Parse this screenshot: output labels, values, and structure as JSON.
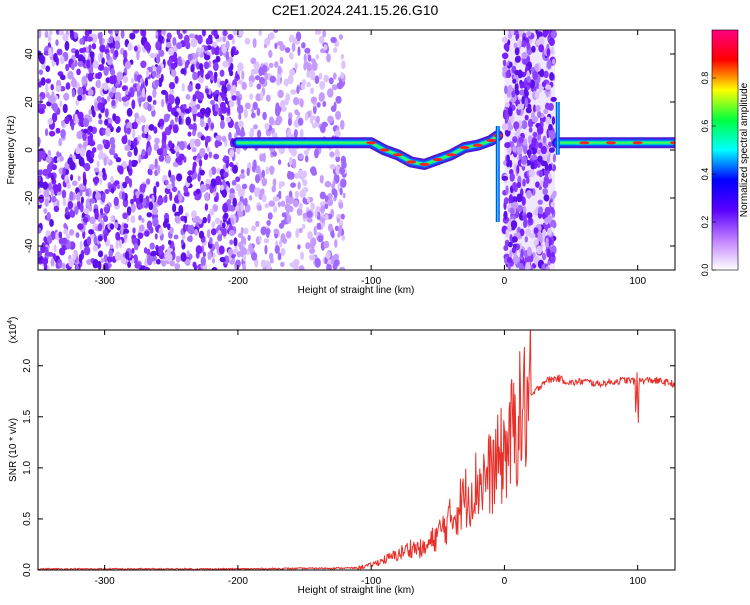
{
  "title": "C2E1.2024.241.15.26.G10",
  "chart_data": [
    {
      "type": "heatmap",
      "xlabel": "Height of straight line (km)",
      "ylabel": "Frequency (Hz)",
      "xlim": [
        -350,
        128
      ],
      "ylim": [
        -50,
        50
      ],
      "xticks": [
        -300,
        -200,
        -100,
        0,
        100
      ],
      "yticks": [
        -40,
        -20,
        0,
        20,
        40
      ],
      "colorbar": {
        "label": "Normalized spectral amplitude",
        "range": [
          0,
          1
        ],
        "ticks": [
          "0.0",
          "0.2",
          "0.4",
          "0.6",
          "0.8"
        ],
        "colors": [
          "#ffffff",
          "#c080ff",
          "#5a00ff",
          "#0000ff",
          "#00ffff",
          "#00ff40",
          "#ffff00",
          "#ff0000",
          "#ff0080"
        ]
      },
      "ridge": {
        "x": [
          -200,
          -180,
          -160,
          -140,
          -120,
          -100,
          -90,
          -80,
          -70,
          -60,
          -50,
          -40,
          -30,
          -20,
          -10,
          -5,
          40,
          60,
          80,
          100,
          128
        ],
        "freq": [
          3,
          3,
          3,
          3,
          3,
          3,
          0,
          -2,
          -5,
          -6,
          -4,
          -2,
          1,
          2,
          4,
          6,
          3,
          3,
          3,
          3,
          3
        ]
      },
      "noise_regions": [
        [
          -350,
          -200
        ],
        [
          -200,
          -120
        ],
        [
          0,
          38
        ]
      ],
      "spikes": [
        [
          -5,
          -30,
          10
        ],
        [
          40,
          -2,
          20
        ]
      ]
    },
    {
      "type": "line",
      "xlabel": "Height of straight line (km)",
      "ylabel": "SNR (10 * v/v)",
      "scale_label": "(x10",
      "scale_exp": "4",
      "scale_suffix": ")",
      "xlim": [
        -350,
        128
      ],
      "ylim": [
        0,
        2.35
      ],
      "xticks": [
        -300,
        -200,
        -100,
        0,
        100
      ],
      "yticks": [
        "0.0",
        "0.5",
        "1.0",
        "1.5",
        "2.0"
      ],
      "line_color": "#e8302a",
      "series": [
        {
          "x": [
            -350,
            -200,
            -110,
            -100,
            -90,
            -80,
            -70,
            -60,
            -50,
            -40,
            -30,
            -20,
            -10,
            0,
            10,
            20,
            30,
            40,
            50,
            60,
            70,
            80,
            90,
            100,
            110,
            120,
            128
          ],
          "y": [
            0.01,
            0.01,
            0.02,
            0.05,
            0.1,
            0.15,
            0.22,
            0.2,
            0.35,
            0.5,
            0.7,
            0.85,
            0.95,
            1.15,
            1.45,
            1.7,
            1.85,
            1.88,
            1.83,
            1.85,
            1.82,
            1.84,
            1.86,
            1.85,
            1.86,
            1.84,
            1.82
          ]
        }
      ]
    }
  ]
}
